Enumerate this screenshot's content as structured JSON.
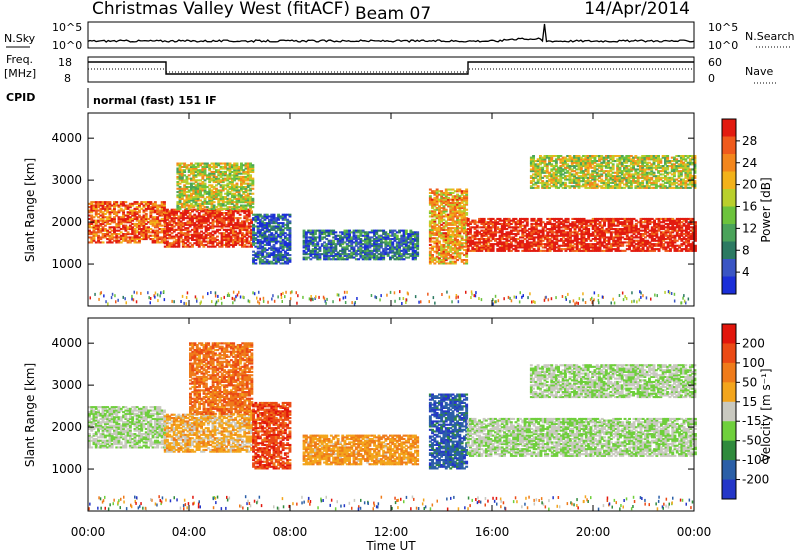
{
  "header": {
    "station": "Christmas Valley West (fitACF)",
    "beam": "Beam 07",
    "date": "14/Apr/2014"
  },
  "param_panels": {
    "nsky_label": "N.Sky",
    "nsky_ticks": [
      "10^5",
      "10^0"
    ],
    "nsearch_label": "N.Search",
    "freq_label": "Freq.",
    "freq_unit": "[MHz]",
    "freq_ticks": [
      "18",
      "8"
    ],
    "nave_label": "Nave",
    "nave_ticks": [
      "60",
      "0"
    ],
    "cpid_label": "CPID",
    "cpid_value": "normal (fast) 151 IF"
  },
  "colors": {
    "power_scale": [
      "#1b2fd8",
      "#3a55c4",
      "#2c7a62",
      "#4aa35a",
      "#6cc33c",
      "#b9cf2c",
      "#f2b21a",
      "#f3861c",
      "#ef5a1c",
      "#e21b10"
    ],
    "velocity_scale": [
      "#2436c8",
      "#2b5fa7",
      "#2f8a3c",
      "#6fcf3c",
      "#c9c9c0",
      "#f3a51c",
      "#ef7b1a",
      "#eb4a15",
      "#e2160c"
    ]
  },
  "chart_data": [
    {
      "type": "heatmap",
      "name": "power",
      "ylabel": "Slant Range [km]",
      "yticks": [
        1000,
        2000,
        3000,
        4000
      ],
      "ylim": [
        0,
        4600
      ],
      "xticks": [
        "00:00",
        "04:00",
        "08:00",
        "12:00",
        "16:00",
        "20:00",
        "00:00"
      ],
      "xlim_hours": [
        0,
        24
      ],
      "colorbar_label": "Power [dB]",
      "colorbar_ticks": [
        "28",
        "24",
        "20",
        "16",
        "12",
        "8",
        "4"
      ],
      "regions": [
        {
          "t": [
            0.0,
            3.0
          ],
          "r": [
            1500,
            2500
          ],
          "level": 0.85
        },
        {
          "t": [
            3.0,
            6.5
          ],
          "r": [
            1400,
            2300
          ],
          "level": 0.95
        },
        {
          "t": [
            3.5,
            6.5
          ],
          "r": [
            2300,
            3400
          ],
          "level": 0.55
        },
        {
          "t": [
            6.5,
            8.0
          ],
          "r": [
            1000,
            2200
          ],
          "level": 0.15
        },
        {
          "t": [
            8.5,
            13.0
          ],
          "r": [
            1100,
            1800
          ],
          "level": 0.2
        },
        {
          "t": [
            13.5,
            15.0
          ],
          "r": [
            1000,
            2800
          ],
          "level": 0.7
        },
        {
          "t": [
            15.0,
            24.0
          ],
          "r": [
            1300,
            2100
          ],
          "level": 1.0
        },
        {
          "t": [
            17.5,
            24.0
          ],
          "r": [
            2800,
            3600
          ],
          "level": 0.55
        }
      ]
    },
    {
      "type": "heatmap",
      "name": "velocity",
      "ylabel": "Slant Range [km]",
      "yticks": [
        1000,
        2000,
        3000,
        4000
      ],
      "ylim": [
        0,
        4600
      ],
      "xticks": [
        "00:00",
        "04:00",
        "08:00",
        "12:00",
        "16:00",
        "20:00",
        "00:00"
      ],
      "xlabel": "Time UT",
      "xlim_hours": [
        0,
        24
      ],
      "colorbar_label": "Velocity [m s⁻¹]",
      "colorbar_ticks": [
        "200",
        "100",
        "50",
        "15",
        "-15",
        "-50",
        "-100",
        "-200"
      ],
      "regions": [
        {
          "t": [
            0.0,
            3.0
          ],
          "r": [
            1500,
            2500
          ],
          "level": 0.45
        },
        {
          "t": [
            3.0,
            6.5
          ],
          "r": [
            1400,
            2300
          ],
          "level": 0.6
        },
        {
          "t": [
            4.0,
            6.5
          ],
          "r": [
            2300,
            4000
          ],
          "level": 0.75
        },
        {
          "t": [
            6.5,
            8.0
          ],
          "r": [
            1000,
            2600
          ],
          "level": 0.85
        },
        {
          "t": [
            8.5,
            13.0
          ],
          "r": [
            1100,
            1800
          ],
          "level": 0.65
        },
        {
          "t": [
            13.5,
            15.0
          ],
          "r": [
            1000,
            2800
          ],
          "level": 0.15
        },
        {
          "t": [
            15.0,
            24.0
          ],
          "r": [
            1300,
            2200
          ],
          "level": 0.45
        },
        {
          "t": [
            17.5,
            24.0
          ],
          "r": [
            2700,
            3500
          ],
          "level": 0.45
        }
      ]
    }
  ]
}
